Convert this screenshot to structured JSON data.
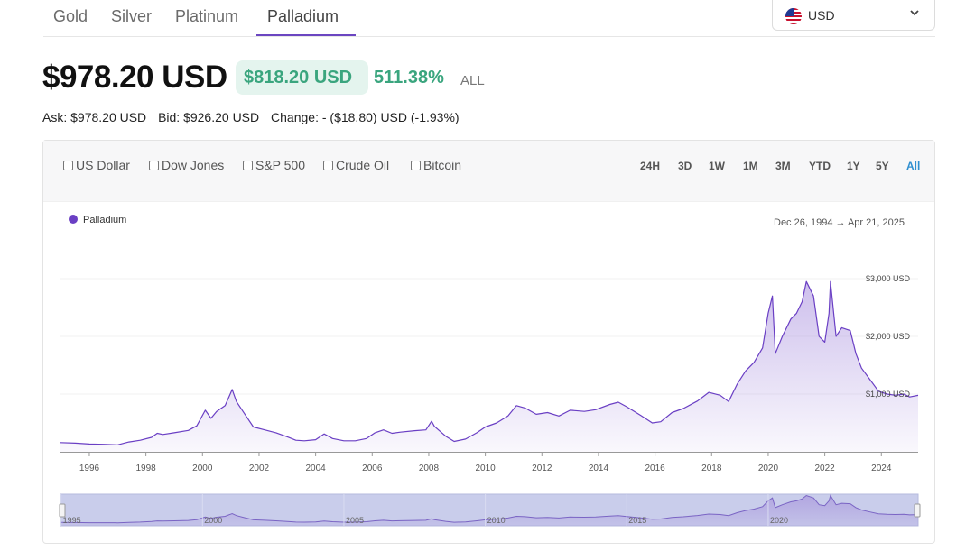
{
  "tabs": [
    {
      "label": "Gold"
    },
    {
      "label": "Silver"
    },
    {
      "label": "Platinum"
    },
    {
      "label": "Palladium",
      "active": true
    }
  ],
  "currency": {
    "code": "USD",
    "flag": "us-flag-icon",
    "chevron": "chevron-down-icon"
  },
  "price": {
    "current": "$978.20 USD",
    "gain_amount": "$818.20 USD",
    "gain_percent": "511.38%",
    "period": "ALL"
  },
  "quote": {
    "ask": "Ask: $978.20 USD",
    "bid": "Bid: $926.20 USD",
    "change": "Change: - ($18.80) USD (-1.93%)"
  },
  "compare": [
    "US Dollar",
    "Dow Jones",
    "S&P 500",
    "Crude Oil",
    "Bitcoin"
  ],
  "ranges": [
    "24H",
    "3D",
    "1W",
    "1M",
    "3M",
    "YTD",
    "1Y",
    "5Y",
    "All"
  ],
  "active_range": "All",
  "colors": {
    "accent": "#6b46c1",
    "line": "#6a3fc4",
    "gain": "#3aa57e",
    "gain_bg": "#e4f4ee",
    "range_active": "#2f8fd0"
  },
  "chart_data": {
    "type": "area",
    "series": [
      {
        "name": "Palladium"
      }
    ],
    "date_range": "Dec 26, 1994 → Apr 21, 2025",
    "x_ticks": [
      "1996",
      "1998",
      "2000",
      "2002",
      "2004",
      "2006",
      "2008",
      "2010",
      "2012",
      "2014",
      "2016",
      "2018",
      "2020",
      "2022",
      "2024"
    ],
    "y_ticks": [
      "$1,000 USD",
      "$2,000 USD",
      "$3,000 USD"
    ],
    "navigator_ticks": [
      "1995",
      "2000",
      "2005",
      "2010",
      "2015",
      "2020"
    ],
    "xlim": [
      1994.98,
      2025.3
    ],
    "ylim": [
      0,
      3000
    ],
    "y_axis_position": "right",
    "legend_position": "top-left",
    "points": [
      [
        1994.98,
        160
      ],
      [
        1995.5,
        150
      ],
      [
        1996.0,
        135
      ],
      [
        1996.5,
        130
      ],
      [
        1997.0,
        120
      ],
      [
        1997.4,
        170
      ],
      [
        1997.8,
        200
      ],
      [
        1998.2,
        250
      ],
      [
        1998.4,
        320
      ],
      [
        1998.6,
        300
      ],
      [
        1999.0,
        330
      ],
      [
        1999.5,
        370
      ],
      [
        1999.8,
        450
      ],
      [
        2000.1,
        720
      ],
      [
        2000.3,
        580
      ],
      [
        2000.5,
        700
      ],
      [
        2000.8,
        800
      ],
      [
        2001.05,
        1080
      ],
      [
        2001.2,
        870
      ],
      [
        2001.5,
        650
      ],
      [
        2001.8,
        430
      ],
      [
        2002.2,
        380
      ],
      [
        2002.6,
        330
      ],
      [
        2003.0,
        260
      ],
      [
        2003.3,
        200
      ],
      [
        2003.6,
        190
      ],
      [
        2004.0,
        210
      ],
      [
        2004.3,
        310
      ],
      [
        2004.6,
        230
      ],
      [
        2005.0,
        190
      ],
      [
        2005.4,
        190
      ],
      [
        2005.8,
        230
      ],
      [
        2006.1,
        330
      ],
      [
        2006.4,
        380
      ],
      [
        2006.7,
        320
      ],
      [
        2007.0,
        340
      ],
      [
        2007.5,
        365
      ],
      [
        2007.9,
        380
      ],
      [
        2008.1,
        530
      ],
      [
        2008.2,
        440
      ],
      [
        2008.6,
        270
      ],
      [
        2008.9,
        180
      ],
      [
        2009.3,
        220
      ],
      [
        2009.7,
        330
      ],
      [
        2010.0,
        430
      ],
      [
        2010.4,
        500
      ],
      [
        2010.8,
        620
      ],
      [
        2011.1,
        800
      ],
      [
        2011.4,
        760
      ],
      [
        2011.8,
        650
      ],
      [
        2012.2,
        680
      ],
      [
        2012.6,
        620
      ],
      [
        2013.0,
        720
      ],
      [
        2013.5,
        700
      ],
      [
        2013.9,
        730
      ],
      [
        2014.4,
        820
      ],
      [
        2014.7,
        860
      ],
      [
        2015.0,
        780
      ],
      [
        2015.5,
        630
      ],
      [
        2015.9,
        500
      ],
      [
        2016.2,
        520
      ],
      [
        2016.6,
        680
      ],
      [
        2017.0,
        750
      ],
      [
        2017.5,
        880
      ],
      [
        2017.9,
        1030
      ],
      [
        2018.3,
        980
      ],
      [
        2018.6,
        870
      ],
      [
        2018.9,
        1170
      ],
      [
        2019.2,
        1400
      ],
      [
        2019.5,
        1550
      ],
      [
        2019.8,
        1800
      ],
      [
        2020.0,
        2400
      ],
      [
        2020.15,
        2700
      ],
      [
        2020.25,
        1700
      ],
      [
        2020.5,
        2000
      ],
      [
        2020.8,
        2300
      ],
      [
        2021.0,
        2400
      ],
      [
        2021.2,
        2600
      ],
      [
        2021.35,
        2950
      ],
      [
        2021.6,
        2700
      ],
      [
        2021.8,
        2000
      ],
      [
        2022.0,
        1900
      ],
      [
        2022.15,
        2400
      ],
      [
        2022.2,
        2950
      ],
      [
        2022.4,
        2000
      ],
      [
        2022.6,
        2150
      ],
      [
        2022.9,
        2100
      ],
      [
        2023.1,
        1700
      ],
      [
        2023.3,
        1450
      ],
      [
        2023.6,
        1250
      ],
      [
        2023.9,
        1050
      ],
      [
        2024.2,
        1000
      ],
      [
        2024.5,
        980
      ],
      [
        2024.8,
        1000
      ],
      [
        2025.0,
        950
      ],
      [
        2025.3,
        978
      ]
    ]
  }
}
